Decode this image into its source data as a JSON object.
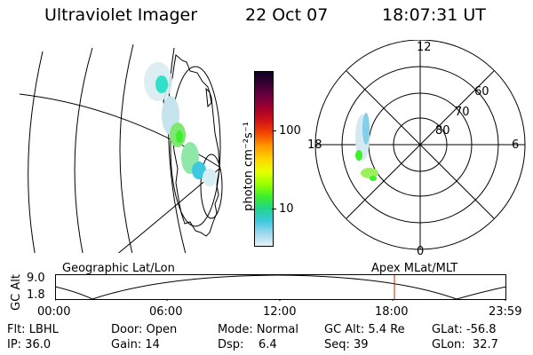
{
  "header": {
    "title": "Ultraviolet Imager",
    "date": "22 Oct 07",
    "time": "18:07:31 UT"
  },
  "colorbar": {
    "unit_label": "photon cm⁻²s⁻¹",
    "ticks": [
      "100",
      "10"
    ],
    "colors": [
      "#0d0026",
      "#3b0033",
      "#6e0040",
      "#a5002a",
      "#d41417",
      "#f24a00",
      "#ff9a00",
      "#ffd400",
      "#e8ff00",
      "#9cff00",
      "#3fef2a",
      "#20d48a",
      "#3ec8e0",
      "#9fd8ec",
      "#e6f2f6"
    ]
  },
  "polar_plot": {
    "mlt_labels": [
      "12",
      "18",
      "6",
      "0"
    ],
    "lat_labels": [
      "60",
      "70",
      "80"
    ]
  },
  "timeline": {
    "left_title": "Geographic Lat/Lon",
    "right_title": "Apex MLat/MLT",
    "y_axis_label": "GC Alt",
    "y_ticks": [
      "9.0",
      "1.8"
    ],
    "x_ticks": [
      "00:00",
      "06:00",
      "12:00",
      "18:00",
      "23:59"
    ],
    "marker_color": "#cc2200"
  },
  "info": {
    "row1": {
      "flt": "Flt: LBHL",
      "door": "Door: Open",
      "mode": "Mode: Normal",
      "gcalt": "GC Alt: 5.4 Re",
      "glat": "GLat: -56.8"
    },
    "row2": {
      "ip": "IP: 36.0",
      "gain": "Gain: 14",
      "dsp": "Dsp:    6.4",
      "seq": "Seq: 39",
      "glon": "GLon:  32.7"
    }
  }
}
